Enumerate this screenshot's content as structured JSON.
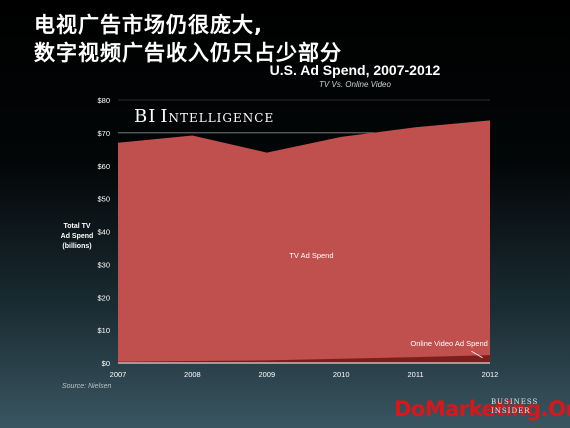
{
  "headline": {
    "line1": "电视广告市场仍很庞大,",
    "line2": "数字视频广告收入仍只占少部分"
  },
  "chart_data": {
    "type": "area",
    "title": "U.S. Ad Spend, 2007-2012",
    "subtitle": "TV Vs. Online Video",
    "ylabel": "Total TV\nAd Spend\n(billions)",
    "xlabel": "",
    "x": [
      2007,
      2008,
      2009,
      2010,
      2011,
      2012
    ],
    "xtick_labels": [
      "2007",
      "2008",
      "2009",
      "2010",
      "2011",
      "2012"
    ],
    "ylim": [
      0,
      80
    ],
    "yticks": [
      0,
      10,
      20,
      30,
      40,
      50,
      60,
      70,
      80
    ],
    "ytick_labels": [
      "$0",
      "$10",
      "$20",
      "$30",
      "$40",
      "$50",
      "$60",
      "$70",
      "$80"
    ],
    "grid": true,
    "series": [
      {
        "name": "TV Ad Spend",
        "values": [
          67,
          69.2,
          64,
          68.8,
          71.7,
          73.8
        ],
        "color": "#c0504d"
      },
      {
        "name": "Online Video Ad Spend",
        "values": [
          0.4,
          0.6,
          0.8,
          1.3,
          1.8,
          2.4
        ],
        "color": "#7a1f1d"
      }
    ],
    "annotations": {
      "tv_label": "TV Ad Spend",
      "online_label": "Online Video Ad Spend"
    },
    "source": "Source: Nielsen"
  },
  "branding": {
    "logo_word1_cap": "BI",
    "logo_word2_cap": "I",
    "logo_word2_rest": "NTELLIGENCE",
    "watermark": "DoMarketing.Org",
    "corner_logo": "BUSINESS\nINSIDER"
  }
}
